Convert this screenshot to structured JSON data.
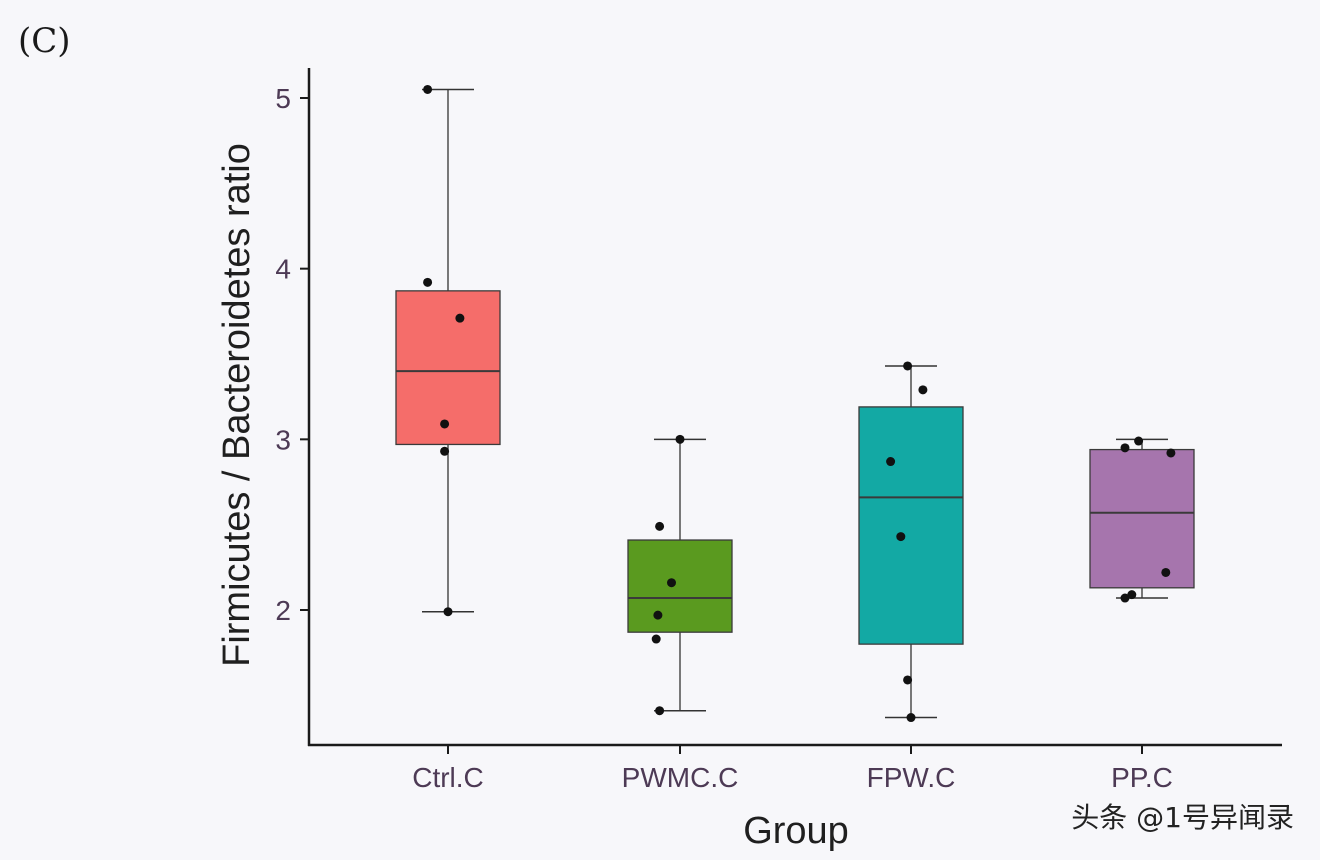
{
  "panel_label": "(C)",
  "watermark": "头条 @1号异闻录",
  "chart_data": {
    "type": "box",
    "title": "",
    "xlabel": "Group",
    "ylabel": "Firmicutes / Bacteroidetes ratio",
    "ylim": [
      1.2,
      5.2
    ],
    "yticks": [
      2,
      3,
      4,
      5
    ],
    "grid": false,
    "legend": "none",
    "categories": [
      "Ctrl.C",
      "PWMC.C",
      "FPW.C",
      "PP.C"
    ],
    "colors": [
      "#f56d6a",
      "#5a9a1f",
      "#13a9a4",
      "#a675ad"
    ],
    "boxes": [
      {
        "name": "Ctrl.C",
        "whisker_low": 1.99,
        "q1": 2.97,
        "median": 3.4,
        "q3": 3.87,
        "whisker_high": 5.05,
        "points": [
          5.05,
          3.92,
          3.71,
          3.09,
          2.93,
          1.99
        ],
        "jitter": [
          -0.12,
          -0.12,
          0.07,
          -0.02,
          -0.02,
          0.0
        ]
      },
      {
        "name": "PWMC.C",
        "whisker_low": 1.41,
        "q1": 1.87,
        "median": 2.07,
        "q3": 2.41,
        "whisker_high": 3.0,
        "points": [
          3.0,
          2.49,
          2.16,
          1.97,
          1.83,
          1.41
        ],
        "jitter": [
          0.0,
          -0.12,
          -0.05,
          -0.13,
          -0.14,
          -0.12
        ]
      },
      {
        "name": "FPW.C",
        "whisker_low": 1.37,
        "q1": 1.8,
        "median": 2.66,
        "q3": 3.19,
        "whisker_high": 3.43,
        "points": [
          3.43,
          3.29,
          2.87,
          2.43,
          1.59,
          1.37
        ],
        "jitter": [
          -0.02,
          0.07,
          -0.12,
          -0.06,
          -0.02,
          0.0
        ]
      },
      {
        "name": "PP.C",
        "whisker_low": 2.07,
        "q1": 2.13,
        "median": 2.57,
        "q3": 2.94,
        "whisker_high": 3.0,
        "points": [
          2.99,
          2.95,
          2.92,
          2.22,
          2.09,
          2.07
        ],
        "jitter": [
          -0.02,
          -0.1,
          0.17,
          0.14,
          -0.06,
          -0.1
        ]
      }
    ]
  }
}
